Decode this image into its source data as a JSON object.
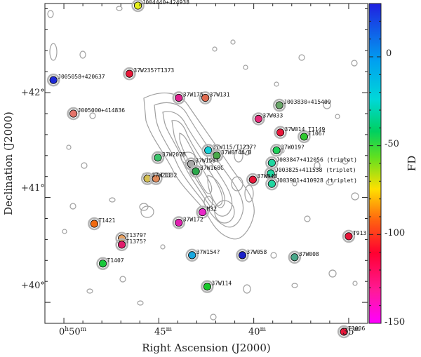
{
  "chart_data": {
    "type": "scatter",
    "xlabel": "Right Ascension (J2000)",
    "ylabel": "Declination (J2000)",
    "colorbar_label": "FD",
    "colorbar_range": [
      -150,
      30
    ],
    "colorbar_ticks": [
      "0",
      "-50",
      "-100",
      "-150"
    ],
    "colorbar_tick_values": [
      0,
      -50,
      -100,
      -150
    ],
    "x_ticks": [
      {
        "label_h": "0",
        "label_hsup": "h",
        "label_m": "50",
        "label_msup": "m",
        "value": 50
      },
      {
        "label_m": "45",
        "label_msup": "m",
        "value": 45
      },
      {
        "label_m": "40",
        "label_msup": "m",
        "value": 40
      },
      {
        "label_m": "35",
        "label_msup": "m",
        "value": 35
      }
    ],
    "y_ticks": [
      {
        "label": "+42°",
        "value": 42
      },
      {
        "label": "+41°",
        "value": 41
      },
      {
        "label": "+40°",
        "value": 40
      }
    ],
    "xlim": [
      51.0,
      34.0
    ],
    "ylim": [
      39.8,
      42.85
    ],
    "points": [
      {
        "name": "J004440+424938",
        "ra": 46.1,
        "dec": 42.83,
        "fd": -40,
        "color": "#e6ef1a"
      },
      {
        "name": "J005058+420637",
        "ra": 50.55,
        "dec": 42.12,
        "fd": 20,
        "color": "#1e2ad8"
      },
      {
        "name": "37W235?T1373",
        "ra": 46.55,
        "dec": 42.18,
        "fd": -112,
        "color": "#e8193a"
      },
      {
        "name": "37W175",
        "ra": 43.95,
        "dec": 41.95,
        "fd": -140,
        "color": "#e0218f"
      },
      {
        "name": "37W131",
        "ra": 42.55,
        "dec": 41.95,
        "fd": -85,
        "color": "#e06a4f"
      },
      {
        "name": "J005000+414836",
        "ra": 49.5,
        "dec": 41.8,
        "fd": -90,
        "color": "#e5746a"
      },
      {
        "name": "J003830+415409",
        "ra": 38.65,
        "dec": 41.88,
        "fd": -45,
        "color": "#6aa86a"
      },
      {
        "name": "37W033",
        "ra": 39.75,
        "dec": 41.75,
        "fd": -125,
        "color": "#e62c7a"
      },
      {
        "name": "37W014 T1149",
        "ra": 38.6,
        "dec": 41.62,
        "fd": -112,
        "color": "#e8173a"
      },
      {
        "name": "T1067",
        "ra": 37.35,
        "dec": 41.58,
        "fd": -50,
        "color": "#2ec72e"
      },
      {
        "name": "37W115/T1237?",
        "ra": 42.4,
        "dec": 41.45,
        "fd": -30,
        "color": "#15d0d8"
      },
      {
        "name": "37W074A/B",
        "ra": 41.95,
        "dec": 41.4,
        "fd": -45,
        "color": "#48a848"
      },
      {
        "name": "37W207B",
        "ra": 45.05,
        "dec": 41.38,
        "fd": -55,
        "color": "#3ac46a"
      },
      {
        "name": "37W019?",
        "ra": 38.8,
        "dec": 41.45,
        "fd": -50,
        "color": "#1fd25a"
      },
      {
        "name": "37W158?",
        "ra": 43.3,
        "dec": 41.32,
        "fd": -85,
        "color": "#a8a8a8"
      },
      {
        "name": "37W168C",
        "ra": 43.05,
        "dec": 41.25,
        "fd": -52,
        "color": "#2aa84a"
      },
      {
        "name": "J003847+412056 (triplet)",
        "ra": 39.05,
        "dec": 41.33,
        "fd": -38,
        "color": "#20d6a0"
      },
      {
        "name": "J003825+411538 (triplet)",
        "ra": 39.1,
        "dec": 41.23,
        "fd": -38,
        "color": "#20d6a0"
      },
      {
        "name": "37W212",
        "ra": 45.6,
        "dec": 41.18,
        "fd": -75,
        "color": "#d6c050"
      },
      {
        "name": "T1332",
        "ra": 45.15,
        "dec": 41.18,
        "fd": -88,
        "color": "#e08a5a"
      },
      {
        "name": "37W048",
        "ra": 40.05,
        "dec": 41.17,
        "fd": -112,
        "color": "#e8173a"
      },
      {
        "name": "J003901+410928 (triplet)",
        "ra": 39.05,
        "dec": 41.13,
        "fd": -38,
        "color": "#20d6a0"
      },
      {
        "name": "T1421",
        "ra": 48.4,
        "dec": 40.75,
        "fd": -92,
        "color": "#f06a10"
      },
      {
        "name": "M32",
        "ra": 42.7,
        "dec": 40.86,
        "fd": -145,
        "color": "#e828c8"
      },
      {
        "name": "37W172",
        "ra": 43.95,
        "dec": 40.76,
        "fd": -142,
        "color": "#e01fb0"
      },
      {
        "name": "T1379?",
        "ra": 46.95,
        "dec": 40.61,
        "fd": -82,
        "color": "#e8a060"
      },
      {
        "name": "T1375?",
        "ra": 46.95,
        "dec": 40.55,
        "fd": -130,
        "color": "#e01b6a"
      },
      {
        "name": "T1407",
        "ra": 47.95,
        "dec": 40.37,
        "fd": -55,
        "color": "#18c83a"
      },
      {
        "name": "37W154?",
        "ra": 43.25,
        "dec": 40.45,
        "fd": -20,
        "color": "#18a8e0"
      },
      {
        "name": "37W058",
        "ra": 40.6,
        "dec": 40.45,
        "fd": 22,
        "color": "#1a20c8"
      },
      {
        "name": "37W008",
        "ra": 37.85,
        "dec": 40.43,
        "fd": -45,
        "color": "#4aa88a"
      },
      {
        "name": "37W114",
        "ra": 42.45,
        "dec": 40.15,
        "fd": -55,
        "color": "#18c82a"
      },
      {
        "name": "T913",
        "ra": 35.0,
        "dec": 40.63,
        "fd": -112,
        "color": "#e8173a"
      },
      {
        "name": "T1006",
        "ra": 35.25,
        "dec": 39.72,
        "fd": -112,
        "color": "#e8173a"
      }
    ]
  }
}
